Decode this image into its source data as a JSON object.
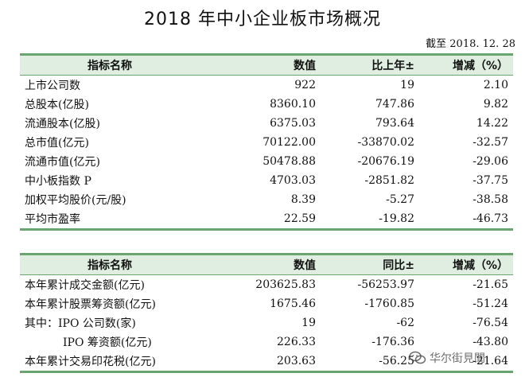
{
  "title": "2018 年中小企业板市场概况",
  "as_of": "截至 2018. 12. 28",
  "table1": {
    "headers": [
      "指标名称",
      "数值",
      "比上年±",
      "增减（%）"
    ],
    "rows": [
      [
        "上市公司数",
        "922",
        "19",
        "2.10"
      ],
      [
        "总股本(亿股)",
        "8360.10",
        "747.86",
        "9.82"
      ],
      [
        "流通股本(亿股)",
        "6375.03",
        "793.64",
        "14.22"
      ],
      [
        "总市值(亿元)",
        "70122.00",
        "-33870.02",
        "-32.57"
      ],
      [
        "流通市值(亿元)",
        "50478.88",
        "-20676.19",
        "-29.06"
      ],
      [
        "中小板指数 P",
        "4703.03",
        "-2851.82",
        "-37.75"
      ],
      [
        "加权平均股价(元/股)",
        "8.39",
        "-5.27",
        "-38.58"
      ],
      [
        "平均市盈率",
        "22.59",
        "-19.82",
        "-46.73"
      ]
    ]
  },
  "table2": {
    "headers": [
      "指标名称",
      "数值",
      "同比±",
      "增减（%）"
    ],
    "rows": [
      [
        "本年累计成交金额(亿元)",
        "203625.83",
        "-56253.97",
        "-21.65"
      ],
      [
        "本年累计股票筹资额(亿元)",
        "1675.46",
        "-1760.85",
        "-51.24"
      ],
      [
        "其中：IPO 公司数(家)",
        "19",
        "-62",
        "-76.54"
      ],
      [
        "IPO 筹资额(亿元)",
        "226.33",
        "-176.36",
        "-43.80"
      ],
      [
        "本年累计交易印花税(亿元)",
        "203.63",
        "-56.25",
        "-21.64"
      ]
    ]
  },
  "watermark": {
    "text": "华尔街見聞",
    "icon": "wechat-icon"
  }
}
